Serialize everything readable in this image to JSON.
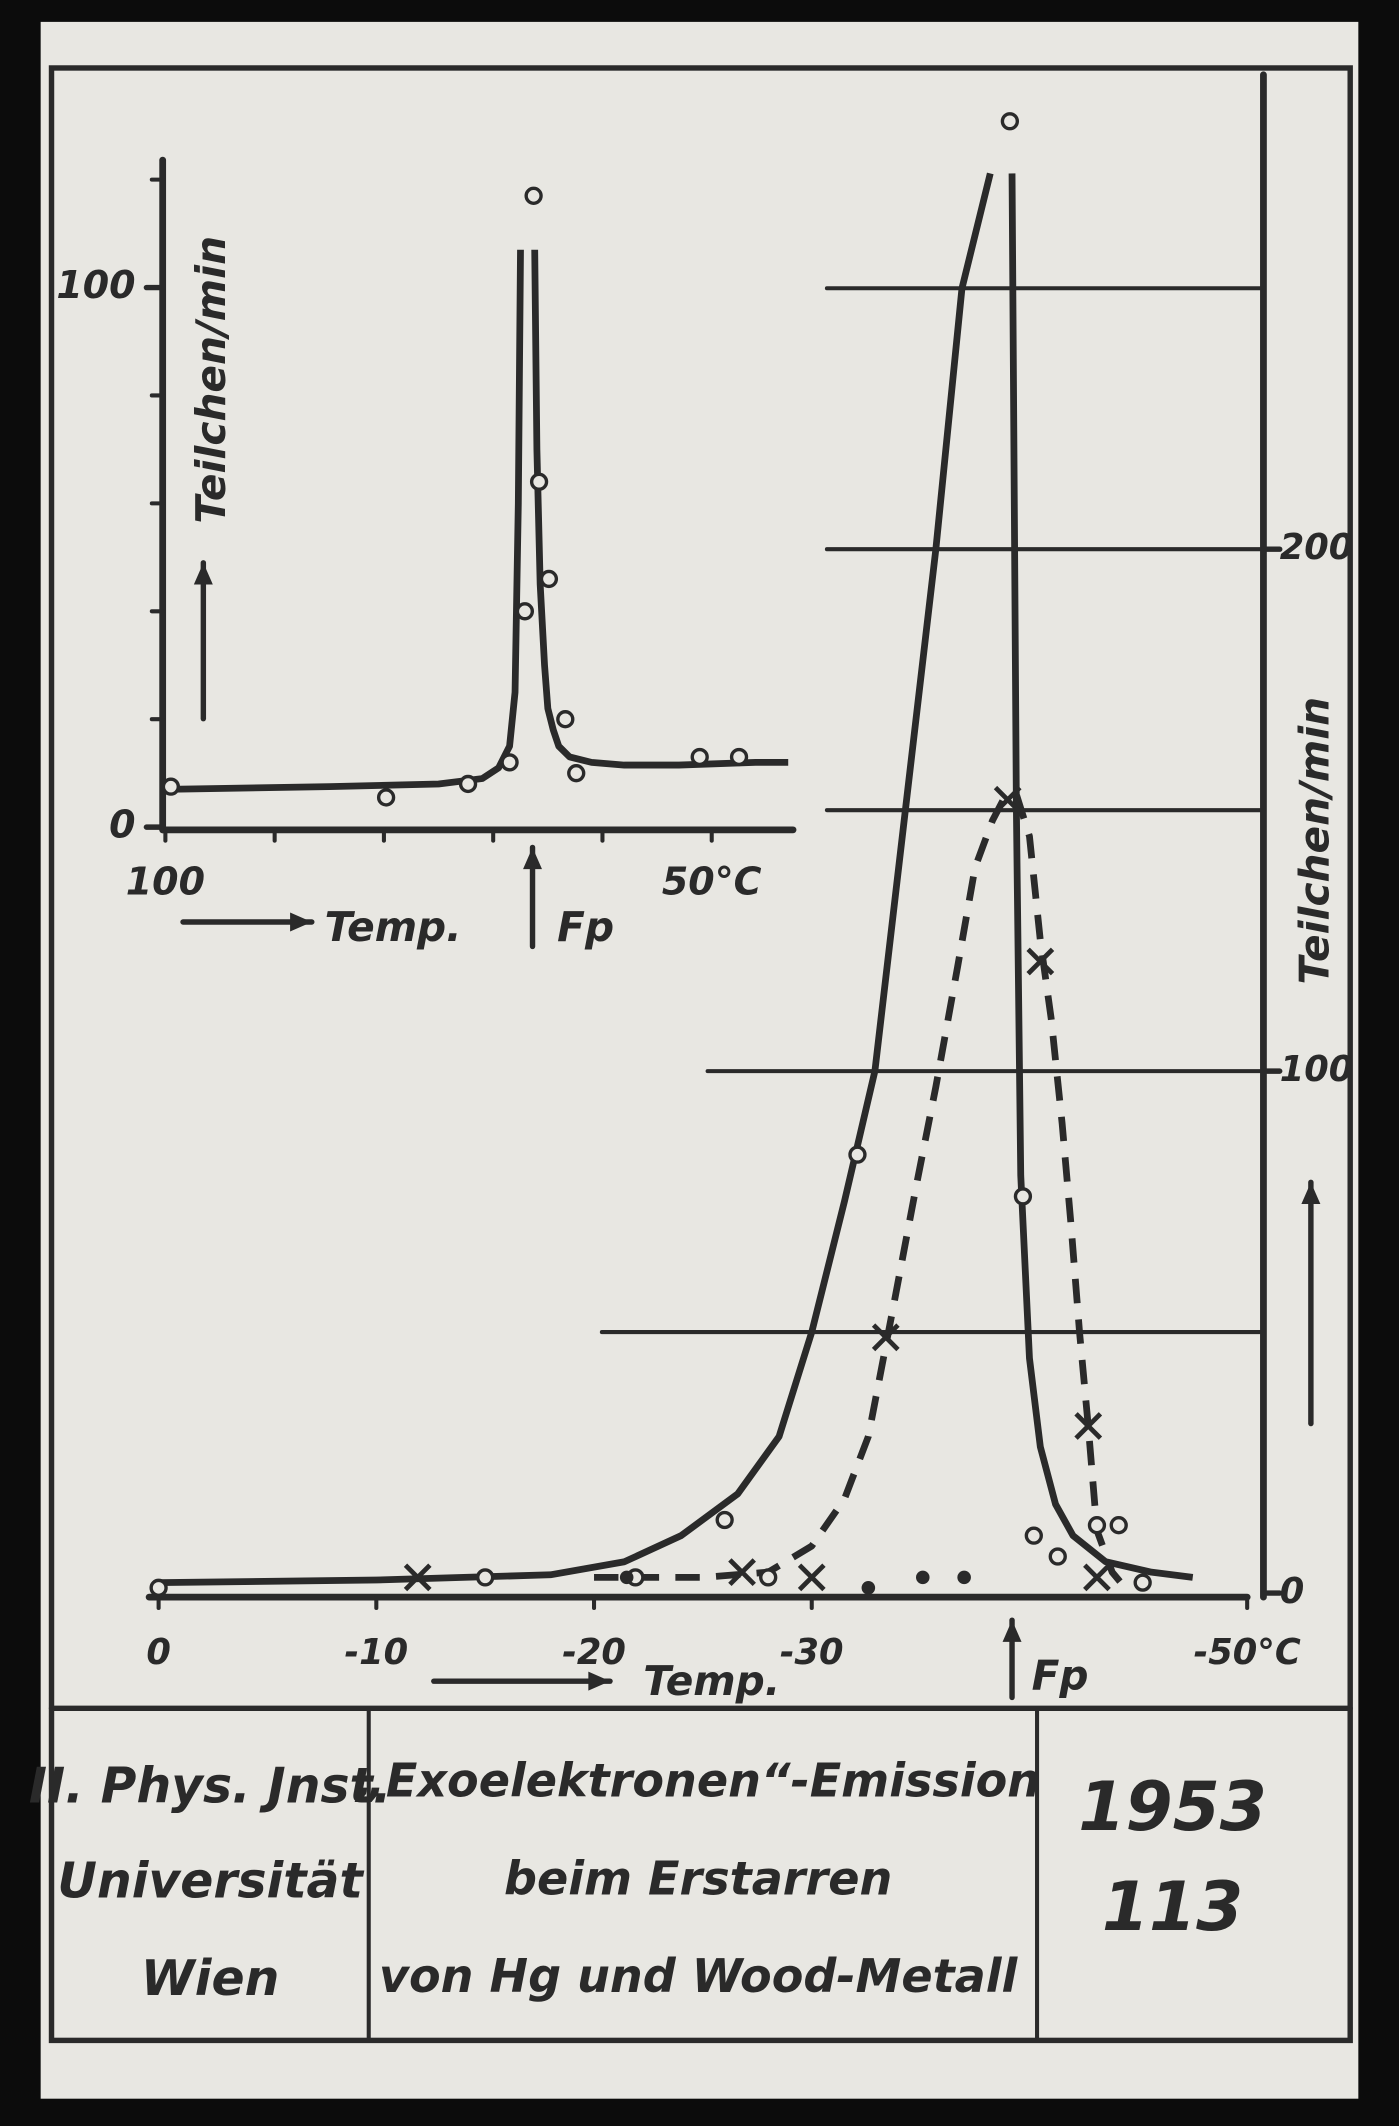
{
  "chart_data": [
    {
      "type": "line",
      "xlabel": "Temp.",
      "ylabel": "Teilchen/min",
      "annotation": "Fp",
      "annotation_x": 66.4,
      "xlim": [
        100,
        42
      ],
      "xticks": [
        100,
        {
          "value": 50,
          "label": "50°C"
        }
      ],
      "xminor_ticks": [
        90,
        80,
        70,
        60
      ],
      "ylim": [
        0,
        122
      ],
      "yticks": [
        0,
        100
      ],
      "yminor_ticks": [
        20,
        40,
        60,
        80,
        120
      ],
      "color": "#2a2a2a",
      "series": [
        {
          "marker": "none",
          "dash": false,
          "x": [
            100,
            85,
            75,
            71,
            69.5,
            68.5,
            68,
            67.7,
            67.5,
            null,
            66.2,
            66,
            65.7,
            65.3,
            65,
            64.5,
            64,
            63,
            61,
            58,
            53,
            46,
            43
          ],
          "values": [
            7,
            7.5,
            8,
            9,
            11,
            15,
            25,
            60,
            107,
            null,
            107,
            70,
            45,
            30,
            22,
            18,
            15,
            13,
            12,
            11.5,
            11.5,
            12,
            12
          ]
        },
        {
          "marker": "circle",
          "dash": false,
          "x": [
            99.5,
            79.8,
            72.3,
            68.5,
            67.1,
            66.3,
            65.8,
            64.9,
            63.4,
            62.4,
            51.1,
            47.5
          ],
          "values": [
            7.5,
            5.5,
            8,
            12,
            40,
            117,
            64,
            46,
            20,
            10,
            13,
            13
          ]
        }
      ]
    },
    {
      "type": "line",
      "xlabel": "Temp.",
      "ylabel": "Teilchen/min",
      "annotation": "Fp",
      "annotation_x": -39.2,
      "xlim": [
        0,
        -50
      ],
      "xticks": [
        0,
        -10,
        -20,
        -30,
        {
          "value": -50,
          "label": "-50°C"
        }
      ],
      "ylim": [
        0,
        290
      ],
      "yticks": [
        0,
        100,
        200
      ],
      "grid_lines": [
        50,
        100,
        150,
        200,
        250
      ],
      "color": "#2a2a2a",
      "series": [
        {
          "marker": "none",
          "dash": false,
          "x": [
            0,
            -10,
            -18,
            -21.4,
            -24,
            -26.6,
            -28.5,
            -30,
            -31.5,
            -32.9,
            -34.3,
            -35.7,
            -36.9,
            -38.2,
            null,
            -39.2,
            -39.4,
            -39.6,
            -40,
            -40.5,
            -41.2,
            -42,
            -43.5,
            -45.6,
            -47.5
          ],
          "values": [
            2,
            2.5,
            3.5,
            6,
            11,
            19,
            30,
            50,
            75,
            100,
            150,
            200,
            250,
            272,
            null,
            272,
            150,
            80,
            45,
            28,
            17,
            11,
            6,
            4,
            3
          ]
        },
        {
          "marker": "none",
          "dash": true,
          "x": [
            -20,
            -25,
            -28,
            -30,
            -31.5,
            -32.6,
            -33.8,
            -34.8,
            -35.7,
            -36.7,
            -37.5,
            -38.3,
            -38.8,
            -39.4,
            -40,
            -40.5,
            -41,
            -41.5,
            -41.9,
            -42.3,
            -42.7,
            -43.1,
            -43.8,
            -44.4
          ],
          "values": [
            3,
            3,
            4,
            9,
            18,
            30,
            56,
            78,
            97,
            120,
            139,
            148,
            152,
            153,
            145,
            125,
            110,
            90,
            71,
            50,
            32,
            12,
            4,
            1
          ]
        },
        {
          "marker": "circle",
          "dash": false,
          "x": [
            0,
            -15,
            -21.9,
            -26,
            -28,
            -32.1,
            -39.1,
            -39.7,
            -40.2,
            -41.3,
            -43.1,
            -44.1,
            -45.2
          ],
          "values": [
            1,
            3,
            3,
            14,
            3,
            84,
            282,
            76,
            11,
            7,
            13,
            13,
            2
          ]
        },
        {
          "marker": "cross",
          "dash": false,
          "x": [
            -11.9,
            -26.8,
            -30,
            -33.4,
            -39,
            -40.5,
            -42.7,
            -43.1
          ],
          "values": [
            3,
            4,
            3,
            49,
            152,
            121,
            32,
            3
          ]
        },
        {
          "marker": "dot",
          "dash": false,
          "x": [
            -21.5,
            -32.6,
            -35.1,
            -37
          ],
          "values": [
            3,
            1,
            3,
            3
          ]
        }
      ]
    }
  ],
  "footer": {
    "institute": [
      "II. Phys. Jnst.",
      "Universität",
      "Wien"
    ],
    "title": [
      "„Exoelektronen“-Emission",
      "beim Erstarren",
      "von Hg und Wood-Metall"
    ],
    "number": [
      "1953",
      "113"
    ]
  }
}
